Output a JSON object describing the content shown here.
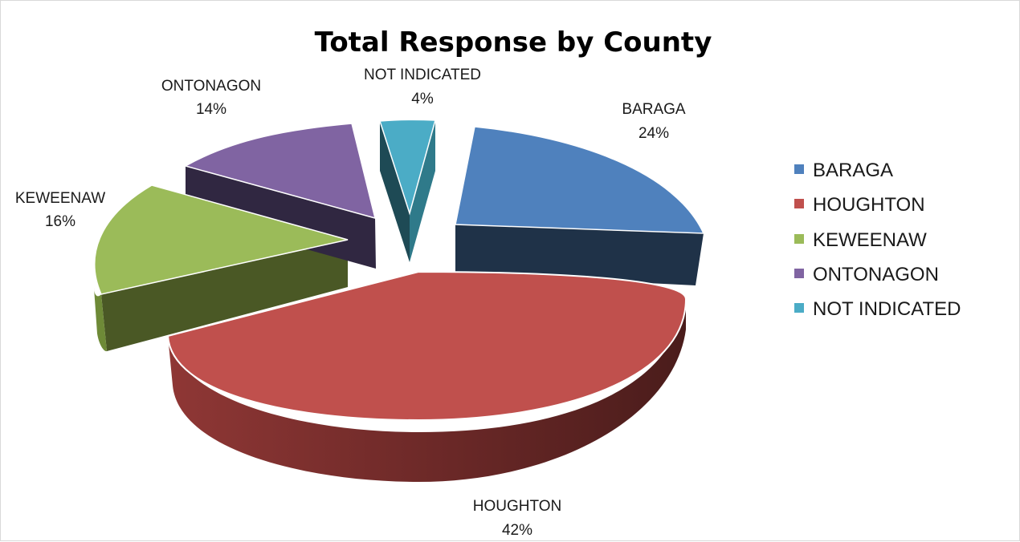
{
  "chart_data": {
    "type": "pie",
    "title": "Total Response by County",
    "categories": [
      "BARAGA",
      "HOUGHTON",
      "KEWEENAW",
      "ONTONAGON",
      "NOT INDICATED"
    ],
    "values": [
      24,
      42,
      16,
      14,
      4
    ],
    "unit": "%",
    "exploded": true,
    "legend_position": "right",
    "colors": [
      "#4f81bd",
      "#c0504d",
      "#9bbb59",
      "#8064a2",
      "#4bacc6"
    ],
    "data_labels": [
      {
        "name": "BARAGA",
        "pct": "24%"
      },
      {
        "name": "HOUGHTON",
        "pct": "42%"
      },
      {
        "name": "KEWEENAW",
        "pct": "16%"
      },
      {
        "name": "ONTONAGON",
        "pct": "14%"
      },
      {
        "name": "NOT INDICATED",
        "pct": "4%"
      }
    ],
    "legend": [
      "BARAGA",
      "HOUGHTON",
      "KEWEENAW",
      "ONTONAGON",
      "NOT INDICATED"
    ]
  }
}
